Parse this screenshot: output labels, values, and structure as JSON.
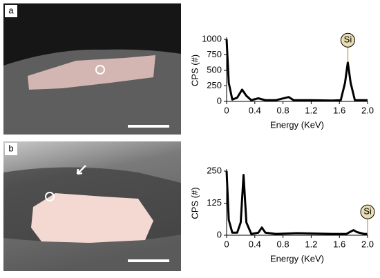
{
  "chart_data": [
    {
      "type": "line",
      "panel_label": "a",
      "x_label": "Energy (KeV)",
      "y_label": "CPS (#)",
      "annotation": "Si",
      "x": [
        0,
        0.03,
        0.08,
        0.15,
        0.22,
        0.28,
        0.35,
        0.45,
        0.55,
        0.7,
        0.88,
        0.95,
        1.2,
        1.5,
        1.62,
        1.68,
        1.72,
        1.76,
        1.82,
        2.0
      ],
      "values": [
        1000,
        300,
        30,
        60,
        190,
        90,
        20,
        50,
        20,
        20,
        70,
        20,
        20,
        15,
        20,
        300,
        630,
        300,
        20,
        20
      ],
      "color": "#000000",
      "xlim": [
        0,
        2
      ],
      "xticks": [
        0,
        0.4,
        0.8,
        1.2,
        1.6,
        {
          "value": 2,
          "label": "2.0"
        }
      ],
      "ylim": [
        0,
        1000
      ],
      "yticks": [
        0,
        250,
        500,
        750,
        1000
      ]
    },
    {
      "type": "line",
      "panel_label": "b",
      "x_label": "Energy (KeV)",
      "y_label": "CPS (#)",
      "annotation": "Si",
      "x": [
        0,
        0.03,
        0.08,
        0.15,
        0.2,
        0.24,
        0.28,
        0.35,
        0.45,
        0.5,
        0.55,
        0.7,
        1.0,
        1.5,
        1.7,
        1.8,
        1.85,
        1.95,
        2.0
      ],
      "values": [
        250,
        60,
        10,
        10,
        50,
        235,
        50,
        5,
        10,
        30,
        10,
        5,
        8,
        5,
        5,
        20,
        12,
        5,
        5
      ],
      "color": "#000000",
      "xlim": [
        0,
        2
      ],
      "xticks": [
        0,
        0.4,
        0.8,
        1.2,
        1.6,
        {
          "value": 2,
          "label": "2.0"
        }
      ],
      "ylim": [
        0,
        250
      ],
      "yticks": [
        0,
        125,
        250
      ]
    }
  ]
}
